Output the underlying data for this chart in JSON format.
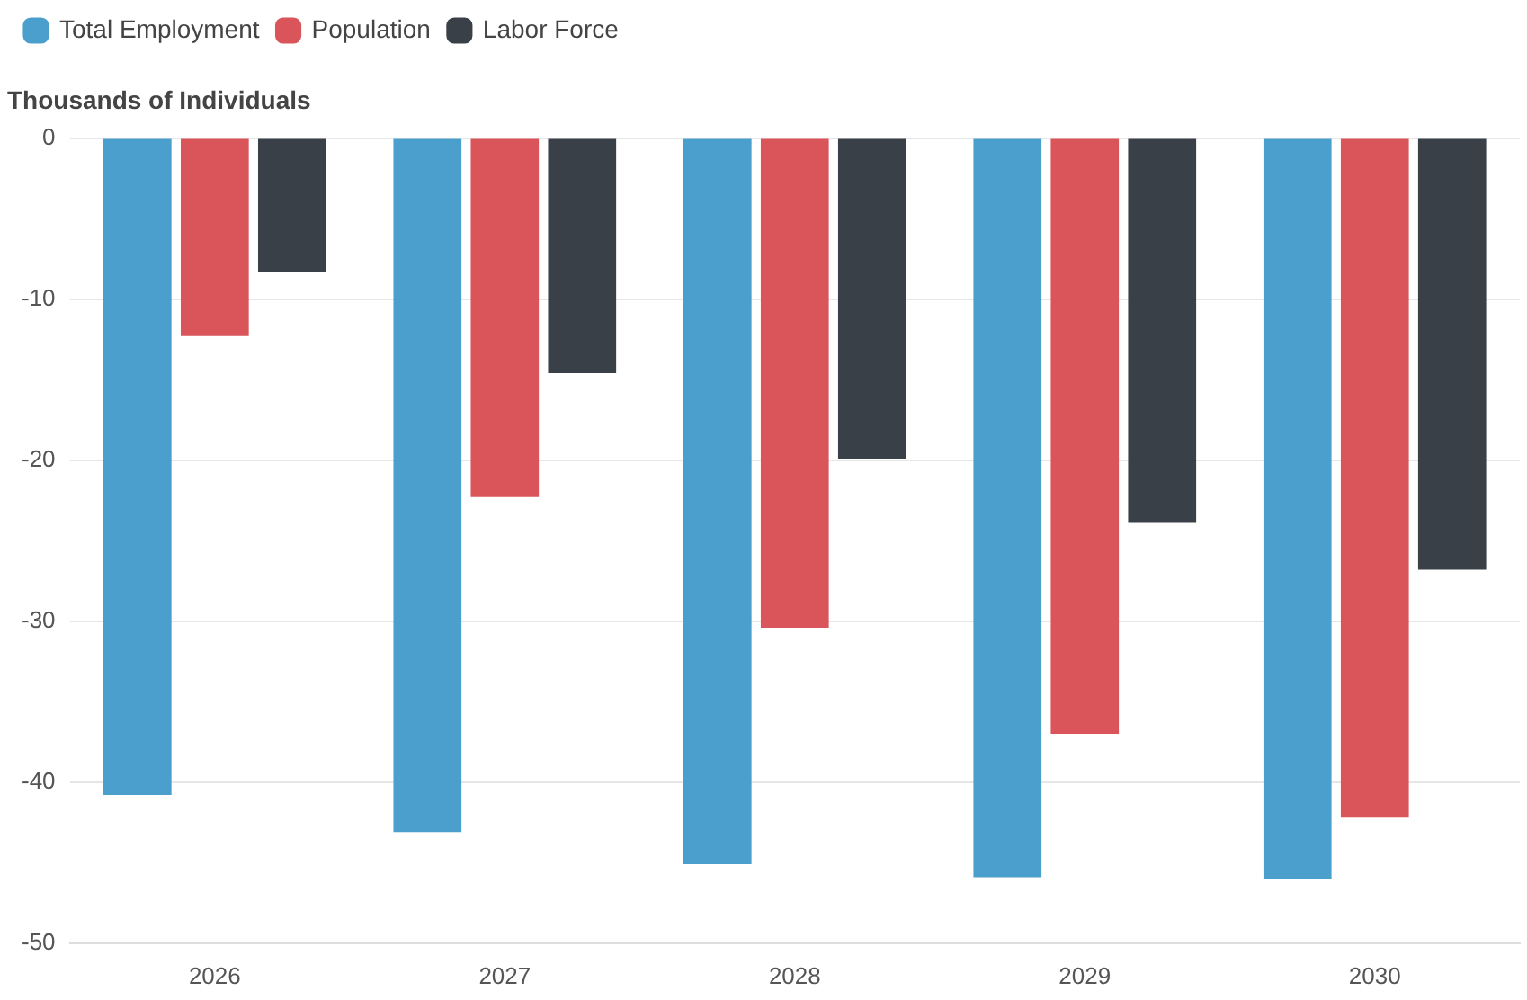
{
  "chart_data": {
    "type": "bar",
    "ylabel": "Thousands of Individuals",
    "categories": [
      "2026",
      "2027",
      "2028",
      "2029",
      "2030"
    ],
    "series": [
      {
        "name": "Total Employment",
        "color": "#4a9fcc",
        "values": [
          -40.8,
          -43.1,
          -45.1,
          -45.9,
          -46.0
        ]
      },
      {
        "name": "Population",
        "color": "#d9555a",
        "values": [
          -12.3,
          -22.3,
          -30.4,
          -37.0,
          -42.2
        ]
      },
      {
        "name": "Labor Force",
        "color": "#3a4048",
        "values": [
          -8.3,
          -14.6,
          -19.9,
          -23.9,
          -26.8
        ]
      }
    ],
    "ylim": [
      -50,
      0
    ],
    "yticks": [
      0,
      -10,
      -20,
      -30,
      -40,
      -50
    ],
    "grid": "y",
    "legend": "top left"
  }
}
